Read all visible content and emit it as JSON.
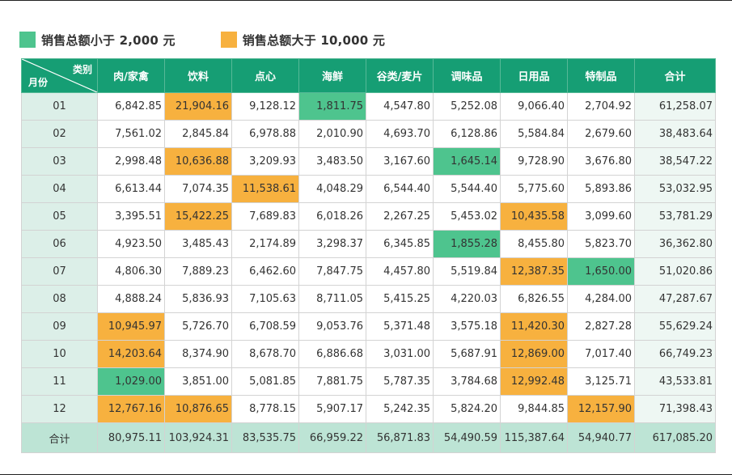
{
  "legend": [
    {
      "label": "销售总额小于 2,000 元",
      "color": "#4ec48e"
    },
    {
      "label": "销售总额大于 10,000 元",
      "color": "#f7b13f"
    }
  ],
  "table": {
    "corner_category": "类别",
    "corner_month": "月份",
    "columns": [
      "肉/家禽",
      "饮料",
      "点心",
      "海鲜",
      "谷类/麦片",
      "调味品",
      "日用品",
      "特制品",
      "合计"
    ],
    "rows": [
      {
        "month": "01",
        "values": [
          "6,842.85",
          "21,904.16",
          "9,128.12",
          "1,811.75",
          "4,547.80",
          "5,252.08",
          "9,066.40",
          "2,704.92",
          "61,258.07"
        ]
      },
      {
        "month": "02",
        "values": [
          "7,561.02",
          "2,845.84",
          "6,978.88",
          "2,010.90",
          "4,693.70",
          "6,128.86",
          "5,584.84",
          "2,679.60",
          "38,483.64"
        ]
      },
      {
        "month": "03",
        "values": [
          "2,998.48",
          "10,636.88",
          "3,209.93",
          "3,483.50",
          "3,167.60",
          "1,645.14",
          "9,728.90",
          "3,676.80",
          "38,547.22"
        ]
      },
      {
        "month": "04",
        "values": [
          "6,613.44",
          "7,074.35",
          "11,538.61",
          "4,048.29",
          "6,544.40",
          "5,544.40",
          "5,775.60",
          "5,893.86",
          "53,032.95"
        ]
      },
      {
        "month": "05",
        "values": [
          "3,395.51",
          "15,422.25",
          "7,689.83",
          "6,018.26",
          "2,267.25",
          "5,453.02",
          "10,435.58",
          "3,099.60",
          "53,781.29"
        ]
      },
      {
        "month": "06",
        "values": [
          "4,923.50",
          "3,485.43",
          "2,174.89",
          "3,298.37",
          "6,345.85",
          "1,855.28",
          "8,455.80",
          "5,823.70",
          "36,362.80"
        ]
      },
      {
        "month": "07",
        "values": [
          "4,806.30",
          "7,889.23",
          "6,462.60",
          "7,847.75",
          "4,457.80",
          "5,519.84",
          "12,387.35",
          "1,650.00",
          "51,020.86"
        ]
      },
      {
        "month": "08",
        "values": [
          "4,888.24",
          "5,836.93",
          "7,105.63",
          "8,711.05",
          "5,415.25",
          "4,220.03",
          "6,826.55",
          "4,284.00",
          "47,287.67"
        ]
      },
      {
        "month": "09",
        "values": [
          "10,945.97",
          "5,726.70",
          "6,708.59",
          "9,053.76",
          "5,371.48",
          "3,575.18",
          "11,420.30",
          "2,827.28",
          "55,629.24"
        ]
      },
      {
        "month": "10",
        "values": [
          "14,203.64",
          "8,374.90",
          "8,678.70",
          "6,886.68",
          "3,031.00",
          "5,687.91",
          "12,869.00",
          "7,017.40",
          "66,749.23"
        ]
      },
      {
        "month": "11",
        "values": [
          "1,029.00",
          "3,851.00",
          "5,081.85",
          "7,881.75",
          "5,787.35",
          "3,784.68",
          "12,992.48",
          "3,125.71",
          "43,533.81"
        ]
      },
      {
        "month": "12",
        "values": [
          "12,767.16",
          "10,876.65",
          "8,778.15",
          "5,907.17",
          "5,242.35",
          "5,824.20",
          "9,844.85",
          "12,157.90",
          "71,398.43"
        ]
      }
    ],
    "total_row": {
      "label": "合计",
      "values": [
        "80,975.11",
        "103,924.31",
        "83,535.75",
        "66,959.22",
        "56,871.83",
        "54,490.59",
        "115,387.64",
        "54,940.77",
        "617,085.20"
      ]
    },
    "highlight_rules": {
      "low_threshold": 2000,
      "low_color": "#4ec48e",
      "high_threshold": 10000,
      "high_color": "#f7b13f"
    }
  }
}
